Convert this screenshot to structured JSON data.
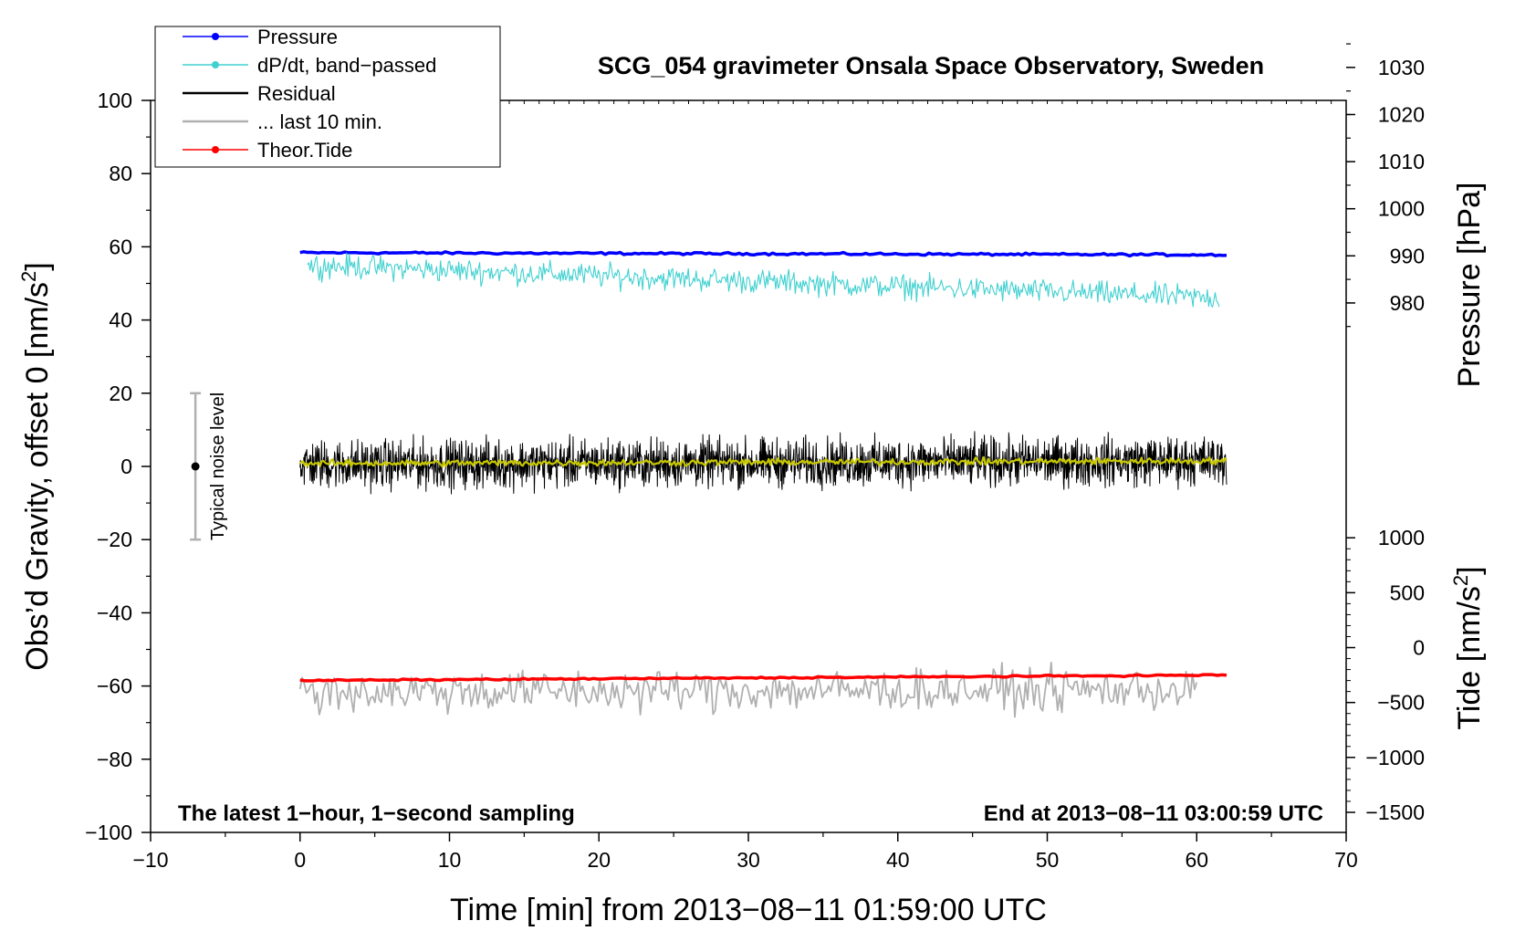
{
  "chart_data": {
    "type": "line",
    "title": "SCG_054 gravimeter Onsala Space Observatory, Sweden",
    "xlabel": "Time [min] from 2013−08−11 01:59:00 UTC",
    "ylabel_left_prefix": "Obs’d Gravity, offset 0 [nm/s",
    "ylabel_left_sup": "2",
    "ylabel_left_suffix": "]",
    "ylabel_pressure": "Pressure [hPa]",
    "ylabel_tide_prefix": "Tide [nm/s",
    "ylabel_tide_sup": "2",
    "ylabel_tide_suffix": "]",
    "xlim": [
      -10,
      70
    ],
    "ylim": [
      -100,
      100
    ],
    "x_ticks": [
      "−10",
      "0",
      "10",
      "20",
      "30",
      "40",
      "50",
      "60",
      "70"
    ],
    "y_ticks": [
      "100",
      "80",
      "60",
      "40",
      "20",
      "0",
      "−20",
      "−40",
      "−60",
      "−80",
      "−100"
    ],
    "pressure_ticks": [
      "1030",
      "1020",
      "1010",
      "1000",
      "990",
      "980"
    ],
    "pressure_axis": {
      "value_at_y0": 945.3,
      "units_per_y": 0.777
    },
    "tide_ticks": [
      "1000",
      "500",
      "0",
      "−500",
      "−1000",
      "−1500"
    ],
    "tide_axis": {
      "value_at_y0": 1650,
      "units_per_y": 33.33
    },
    "annotation_left": "The latest 1−hour, 1−second sampling",
    "annotation_right": "End at 2013−08−11 03:00:59 UTC",
    "noise_label": "Typical noise level",
    "noise_bar": {
      "x": -7,
      "center": 0,
      "low": -20,
      "high": 20
    },
    "legend": [
      {
        "label": "Pressure",
        "color": "#0000ff",
        "marker": true
      },
      {
        "label": "dP/dt, band−passed",
        "color": "#40d0d0",
        "marker": true
      },
      {
        "label": "Residual",
        "color": "#000000",
        "marker": false
      },
      {
        "label": "... last 10 min.",
        "color": "#b0b0b0",
        "marker": false
      },
      {
        "label": "Theor.Tide",
        "color": "#ff0000",
        "marker": true
      }
    ],
    "series": [
      {
        "name": "Pressure",
        "color": "#0000ff",
        "x_range": [
          0,
          62
        ],
        "start": 58.4,
        "end": 57.8,
        "noise": 0.15,
        "points": 250,
        "width": 3.5
      },
      {
        "name": "dP/dt, band−passed",
        "color": "#40d0d0",
        "x_range": [
          0.5,
          61.5
        ],
        "start": 55.0,
        "end": 46.0,
        "noise": 1.6,
        "points": 700,
        "width": 1.1
      },
      {
        "name": "Residual",
        "color": "#000000",
        "x_range": [
          0,
          62
        ],
        "start": 0.5,
        "end": 1.5,
        "noise": 3.2,
        "points": 2200,
        "width": 1.0
      },
      {
        "name": "Residual smoothed",
        "color": "#c8c800",
        "x_range": [
          0,
          62
        ],
        "start": 0.8,
        "end": 1.5,
        "noise": 0.45,
        "points": 600,
        "width": 2.2
      },
      {
        "name": "... last 10 min.",
        "color": "#b0b0b0",
        "x_range": [
          0,
          60
        ],
        "start": -61.5,
        "end": -61.0,
        "noise": 2.8,
        "points": 420,
        "width": 1.8
      },
      {
        "name": "Theor.Tide",
        "color": "#ff0000",
        "x_range": [
          0,
          62
        ],
        "start": -58.5,
        "end": -57.0,
        "noise": 0.1,
        "points": 200,
        "width": 3.5
      }
    ]
  }
}
